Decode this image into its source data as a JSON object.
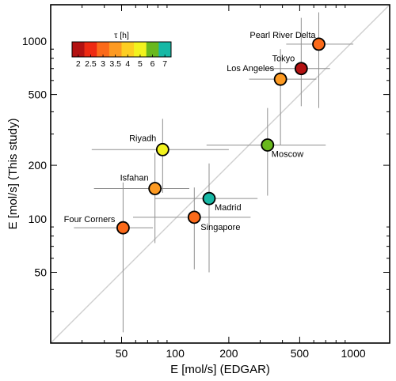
{
  "chart_data": {
    "type": "scatter",
    "xlabel": "E [mol/s] (EDGAR)",
    "ylabel": "E [mol/s] (This study)",
    "xscale": "log",
    "yscale": "log",
    "xlim": [
      20,
      1600
    ],
    "ylim": [
      20,
      1600
    ],
    "xticks": [
      50,
      100,
      200,
      500,
      1000
    ],
    "yticks": [
      50,
      100,
      200,
      500,
      1000
    ],
    "identity_line": true,
    "colorbar": {
      "title": "τ [h]",
      "labels": [
        "2",
        "2.5",
        "3",
        "3.5",
        "4",
        "5",
        "6",
        "7"
      ],
      "colors": [
        "#b31212",
        "#ee2a12",
        "#fb6a1a",
        "#fd9a22",
        "#fdce22",
        "#f2f21e",
        "#69b81e",
        "#17b8a5"
      ]
    },
    "points": [
      {
        "label": "Pearl River Delta",
        "x": 640,
        "y": 960,
        "xerr": [
          420,
          1000
        ],
        "yerr": [
          420,
          1450
        ],
        "color": "#fb6a1a"
      },
      {
        "label": "Tokyo",
        "x": 510,
        "y": 700,
        "xerr": [
          330,
          740
        ],
        "yerr": [
          430,
          1350
        ],
        "color": "#b31212"
      },
      {
        "label": "Los Angeles",
        "x": 390,
        "y": 610,
        "xerr": [
          260,
          620
        ],
        "yerr": [
          260,
          900
        ],
        "color": "#fd9a22"
      },
      {
        "label": "Moscow",
        "x": 330,
        "y": 260,
        "xerr": [
          150,
          700
        ],
        "yerr": [
          135,
          420
        ],
        "color": "#69b81e"
      },
      {
        "label": "Riyadh",
        "x": 85,
        "y": 245,
        "xerr": [
          34,
          200
        ],
        "yerr": [
          140,
          365
        ],
        "color": "#f2f21e"
      },
      {
        "label": "Isfahan",
        "x": 77,
        "y": 148,
        "xerr": [
          35,
          120
        ],
        "yerr": [
          73,
          235
        ],
        "color": "#fd9a22"
      },
      {
        "label": "Madrid",
        "x": 155,
        "y": 130,
        "xerr": [
          77,
          290
        ],
        "yerr": [
          50,
          205
        ],
        "color": "#17b8a5"
      },
      {
        "label": "Singapore",
        "x": 128,
        "y": 102,
        "xerr": [
          58,
          265
        ],
        "yerr": [
          52,
          150
        ],
        "color": "#fb6a1a"
      },
      {
        "label": "Four Corners",
        "x": 51,
        "y": 89,
        "xerr": [
          27,
          75
        ],
        "yerr": [
          23,
          160
        ],
        "color": "#fb6a1a"
      }
    ]
  }
}
